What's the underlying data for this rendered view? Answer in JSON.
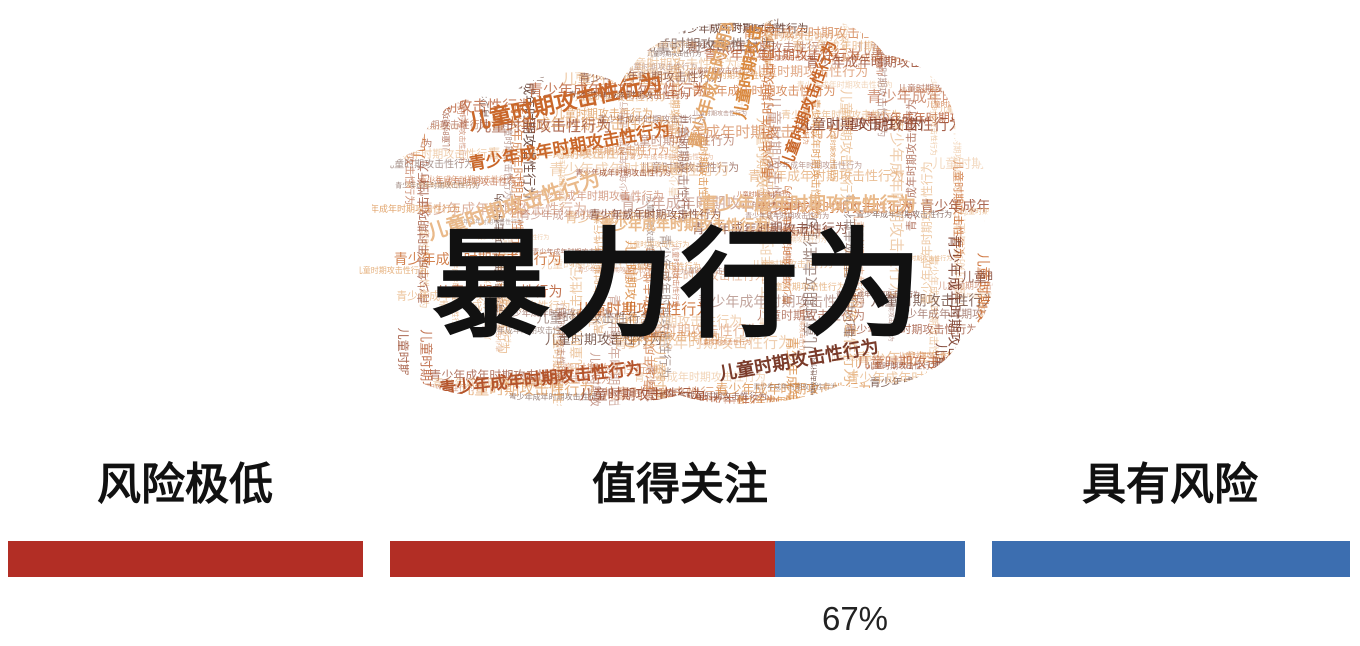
{
  "wordcloud": {
    "title": "暴力行为",
    "phrases": [
      "儿童时期攻击性行为",
      "青少年成年时期攻击性行为"
    ],
    "colors": [
      "#c9672a",
      "#d9893f",
      "#e2a56a",
      "#b4542b",
      "#7a3b2a",
      "#5a3326",
      "#e9b98a",
      "#9a4a30"
    ]
  },
  "scale": {
    "segments": [
      {
        "label": "风险极低",
        "risk_share": 1.0,
        "color": "#b22e25"
      },
      {
        "label": "值得关注",
        "risk_share": 0.67,
        "color": "#b22e25",
        "alt_color": "#3c6eb0"
      },
      {
        "label": "具有风险",
        "risk_share": 0.0,
        "color": "#3c6eb0"
      }
    ],
    "marker_label": "67%"
  }
}
